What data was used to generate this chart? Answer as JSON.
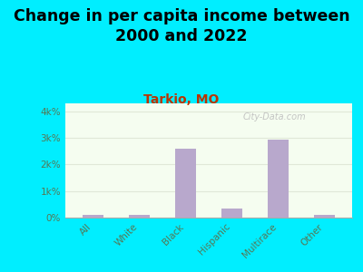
{
  "title": "Change in per capita income between\n2000 and 2022",
  "subtitle": "Tarkio, MO",
  "categories": [
    "All",
    "White",
    "Black",
    "Hispanic",
    "Multirace",
    "Other"
  ],
  "values": [
    100,
    100,
    2600,
    350,
    2950,
    100
  ],
  "bar_color": "#b8a8cc",
  "background_outer": "#00eeff",
  "background_chart_top": "#e8f5e0",
  "background_chart_bottom": "#f5fdf0",
  "yticks": [
    0,
    1000,
    2000,
    3000,
    4000
  ],
  "ytick_labels": [
    "0%",
    "1k%",
    "2k%",
    "3k%",
    "4k%"
  ],
  "ylim": [
    0,
    4300
  ],
  "title_fontsize": 12.5,
  "subtitle_fontsize": 10,
  "subtitle_color": "#bb3300",
  "axis_label_color": "#557755",
  "tick_label_color": "#557755",
  "watermark": "City-Data.com",
  "watermark_color": "#bbbbbb",
  "grid_color": "#e0e8d8"
}
